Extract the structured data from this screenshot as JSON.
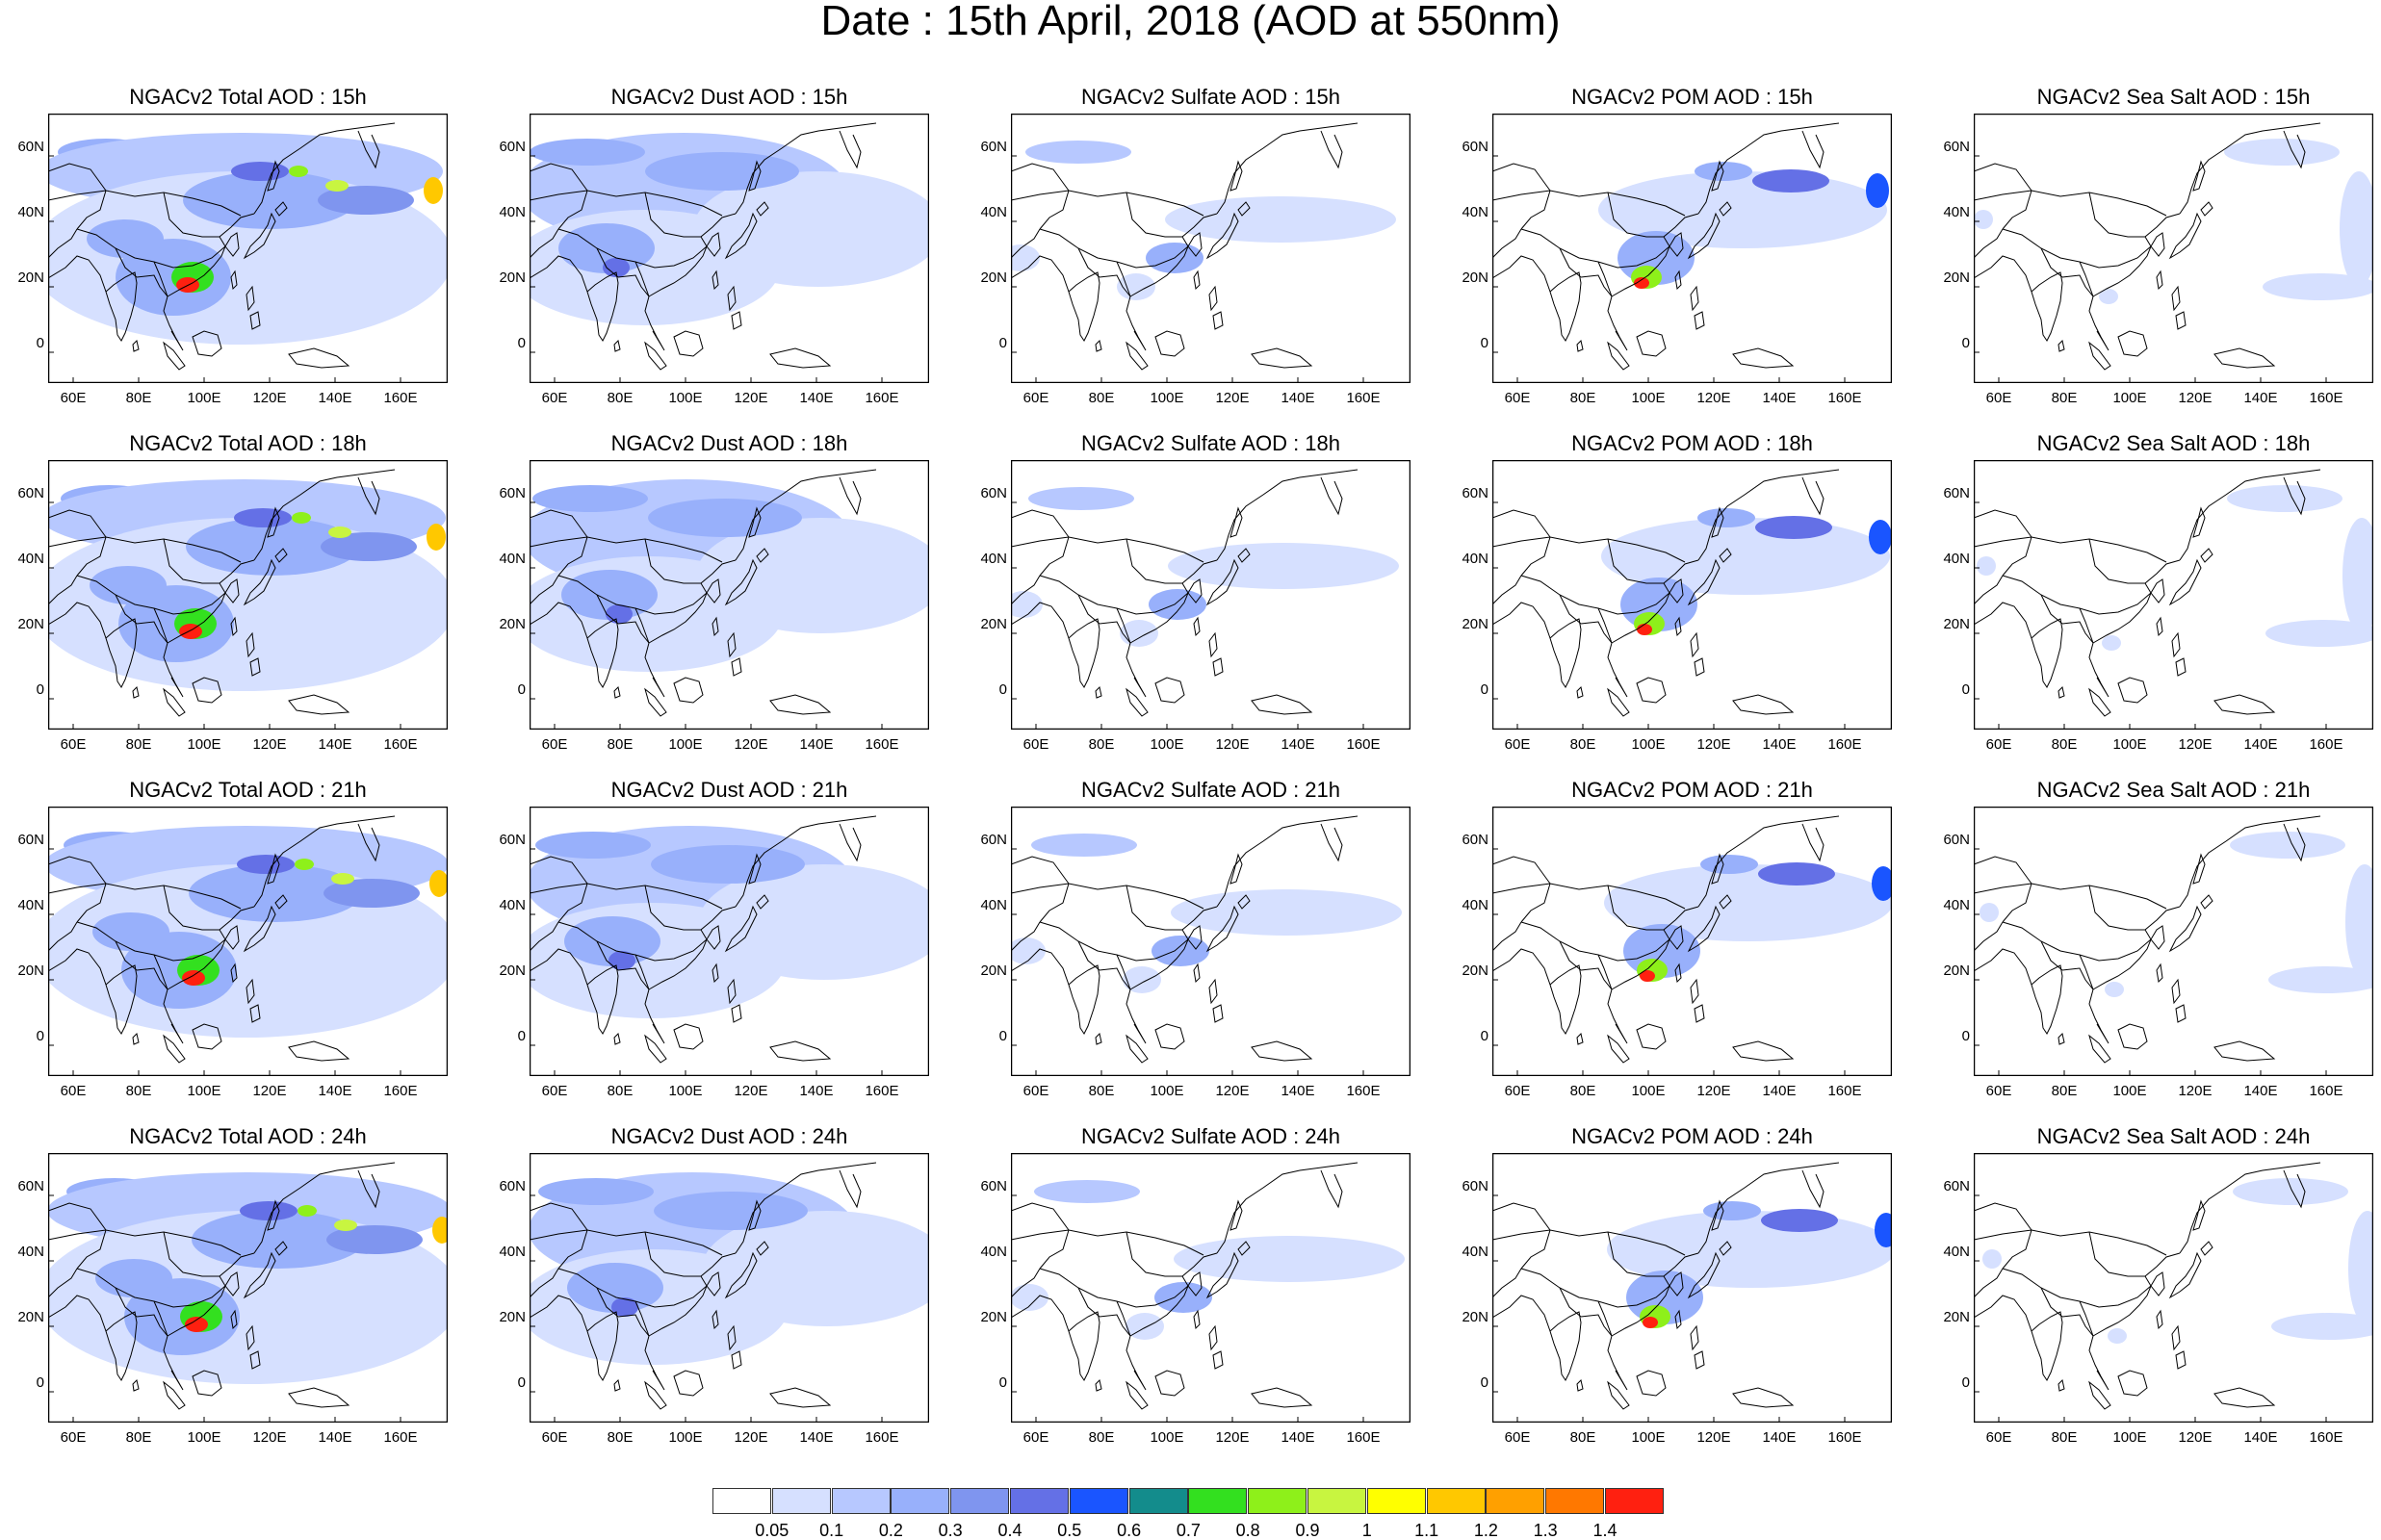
{
  "title": "Date : 15th April, 2018 (AOD at 550nm)",
  "panels": [
    [
      "NGACv2 Total AOD : 15h",
      "NGACv2 Dust AOD : 15h",
      "NGACv2 Sulfate AOD : 15h",
      "NGACv2 POM AOD : 15h",
      "NGACv2 Sea Salt AOD : 15h"
    ],
    [
      "NGACv2 Total AOD : 18h",
      "NGACv2 Dust AOD : 18h",
      "NGACv2 Sulfate AOD : 18h",
      "NGACv2 POM AOD : 18h",
      "NGACv2 Sea Salt AOD : 18h"
    ],
    [
      "NGACv2 Total AOD : 21h",
      "NGACv2 Dust AOD : 21h",
      "NGACv2 Sulfate AOD : 21h",
      "NGACv2 POM AOD : 21h",
      "NGACv2 Sea Salt AOD : 21h"
    ],
    [
      "NGACv2 Total AOD : 24h",
      "NGACv2 Dust AOD : 24h",
      "NGACv2 Sulfate AOD : 24h",
      "NGACv2 POM AOD : 24h",
      "NGACv2 Sea Salt  AOD : 24h"
    ]
  ],
  "lat_labels": [
    "60N",
    "40N",
    "20N",
    "0"
  ],
  "lon_labels": [
    "60E",
    "80E",
    "100E",
    "120E",
    "140E",
    "160E"
  ],
  "colorbar": {
    "labels": [
      "0.05",
      "0.1",
      "0.2",
      "0.3",
      "0.4",
      "0.5",
      "0.6",
      "0.7",
      "0.8",
      "0.9",
      "1",
      "1.1",
      "1.2",
      "1.3",
      "1.4"
    ],
    "colors": [
      "#ffffff",
      "#d6e0ff",
      "#b7c8ff",
      "#98b0fb",
      "#7f95ef",
      "#6470e6",
      "#1a55ff",
      "#138c8c",
      "#33e01f",
      "#8ef01a",
      "#c8f540",
      "#ffff00",
      "#ffc800",
      "#ffa000",
      "#ff7800",
      "#ff2010"
    ]
  }
}
